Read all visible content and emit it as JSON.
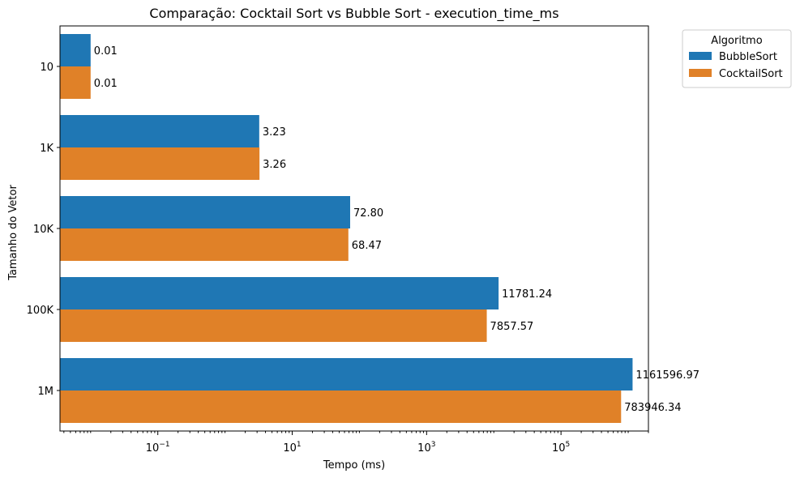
{
  "chart_data": {
    "type": "bar",
    "orientation": "horizontal",
    "title": "Comparação: Cocktail Sort vs Bubble Sort - execution_time_ms",
    "xlabel": "Tempo (ms)",
    "ylabel": "Tamanho do Vetor",
    "x_scale": "log",
    "xlim": [
      0.0035,
      2000000
    ],
    "x_ticks": [
      {
        "value": 0.1,
        "base": "10",
        "exp": "−1"
      },
      {
        "value": 10,
        "base": "10",
        "exp": "1"
      },
      {
        "value": 1000,
        "base": "10",
        "exp": "3"
      },
      {
        "value": 100000,
        "base": "10",
        "exp": "5"
      }
    ],
    "categories": [
      "10",
      "1K",
      "10K",
      "100K",
      "1M"
    ],
    "series": [
      {
        "name": "BubbleSort",
        "color": "#1f77b4",
        "values": [
          0.01,
          3.23,
          72.8,
          11781.24,
          1161596.97
        ],
        "labels": [
          "0.01",
          "3.23",
          "72.80",
          "11781.24",
          "1161596.97"
        ]
      },
      {
        "name": "CocktailSort",
        "color": "#e08128",
        "values": [
          0.01,
          3.26,
          68.47,
          7857.57,
          783946.34
        ],
        "labels": [
          "0.01",
          "3.26",
          "68.47",
          "7857.57",
          "783946.34"
        ]
      }
    ],
    "legend": {
      "title": "Algoritmo",
      "placement": "outside-upper-right"
    },
    "grid": false
  }
}
